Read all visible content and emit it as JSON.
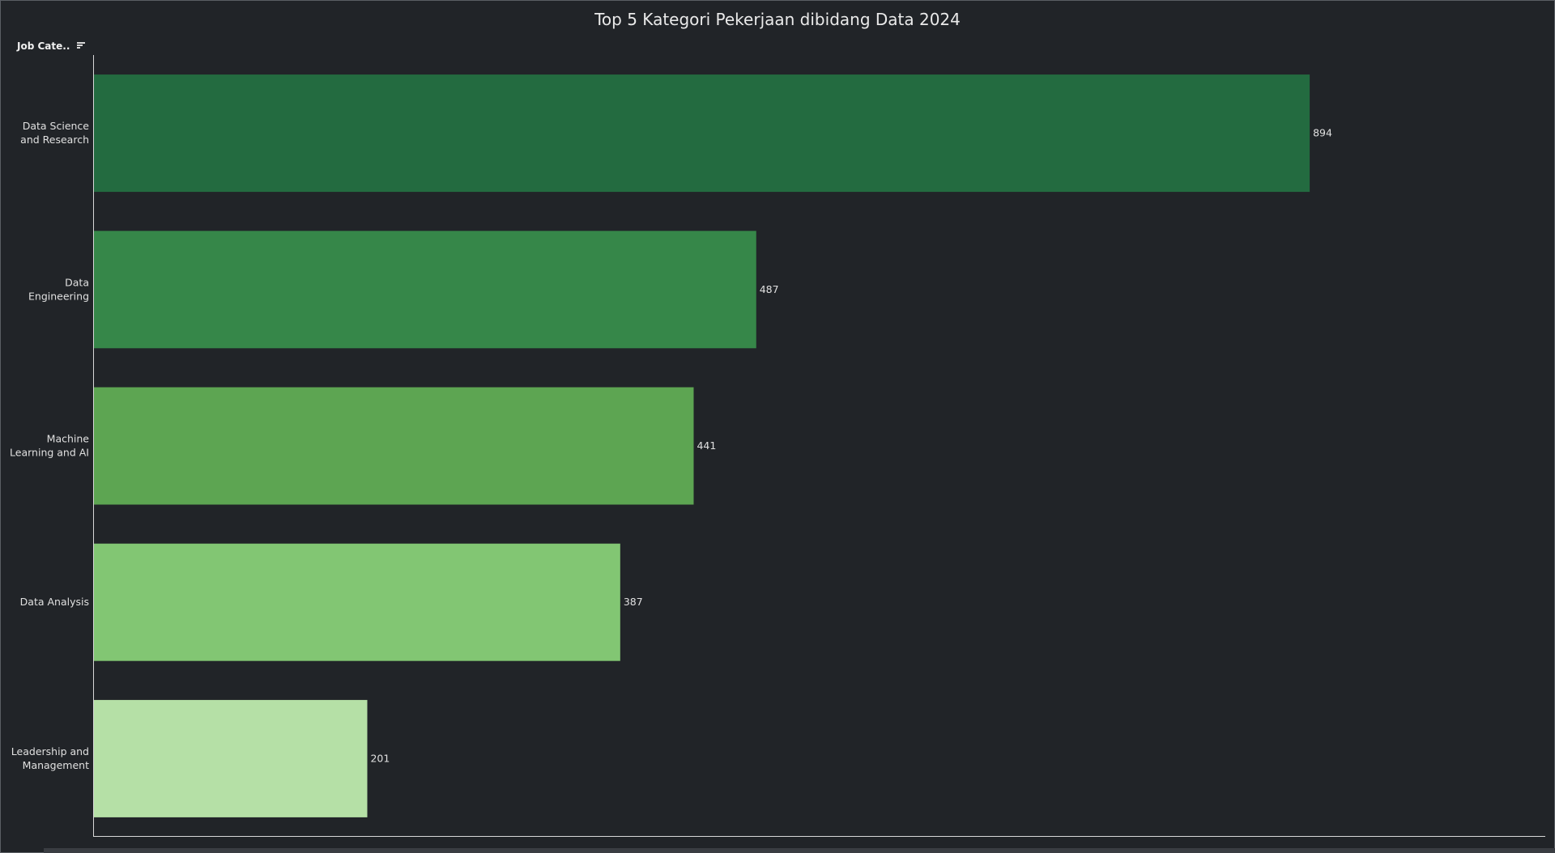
{
  "chart_data": {
    "type": "bar",
    "orientation": "horizontal",
    "title": "Top 5 Kategori Pekerjaan dibidang Data 2024",
    "category_header": "Job Cate..",
    "categories": [
      [
        "Data Science",
        "and Research"
      ],
      [
        "Data",
        "Engineering"
      ],
      [
        "Machine",
        "Learning and AI"
      ],
      [
        "Data Analysis"
      ],
      [
        "Leadership and",
        "Management"
      ]
    ],
    "values": [
      894,
      487,
      441,
      387,
      201
    ],
    "colors": [
      "#236b40",
      "#368749",
      "#5da552",
      "#82c673",
      "#b5e0a6"
    ],
    "xlim": [
      0,
      1000
    ],
    "grid": false,
    "legend": "none"
  },
  "icons": {
    "sort": "sort-descending-icon"
  },
  "colors": {
    "background": "#212428",
    "axis": "#d8d8d8",
    "text": "#e0e0e0"
  }
}
